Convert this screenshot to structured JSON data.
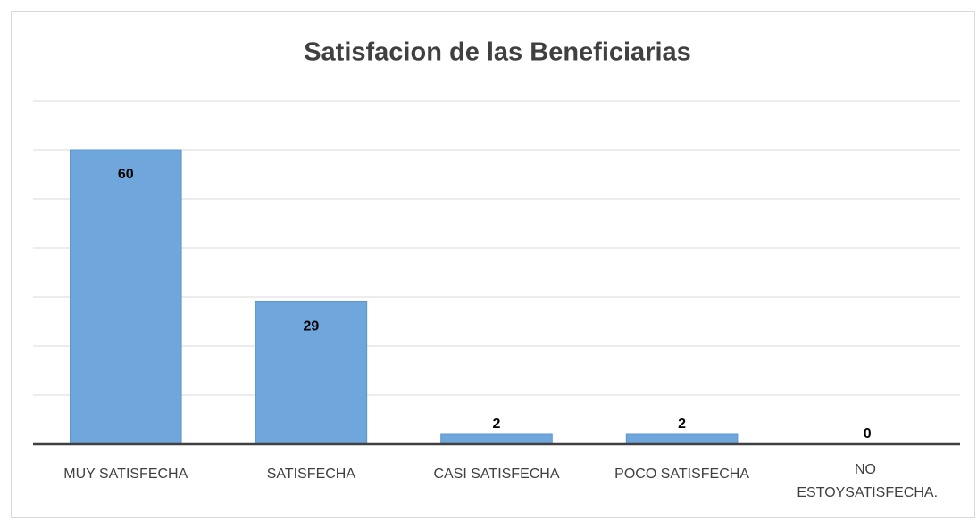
{
  "chart_data": {
    "type": "bar",
    "title": "Satisfacion de las Beneficiarias",
    "categories": [
      "MUY SATISFECHA",
      "SATISFECHA",
      "CASI SATISFECHA",
      "POCO SATISFECHA",
      "NO ESTOYSATISFECHA."
    ],
    "values": [
      60,
      29,
      2,
      2,
      0
    ],
    "color": "#6fa6dc",
    "ylim": [
      0,
      70
    ],
    "yticks": [
      0,
      10,
      20,
      30,
      40,
      50,
      60,
      70
    ],
    "grid": true
  }
}
